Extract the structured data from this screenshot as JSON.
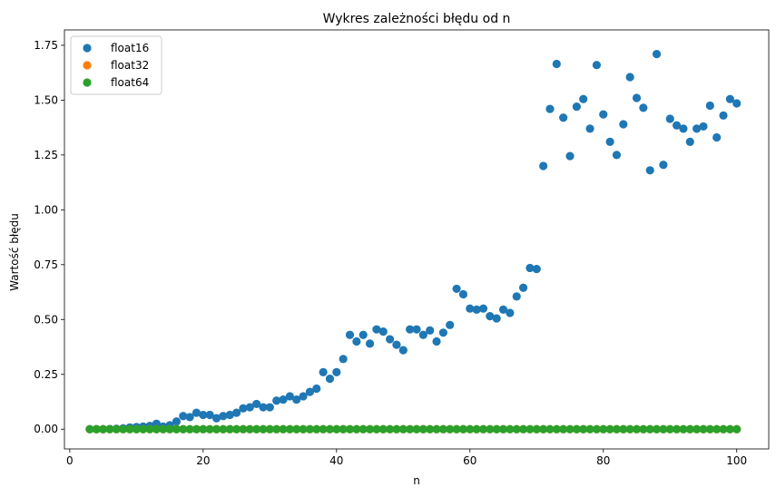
{
  "chart_data": {
    "type": "scatter",
    "title": "Wykres zależności błędu od n",
    "xlabel": "n",
    "ylabel": "Wartość błędu",
    "xlim": [
      -0.8,
      104.8
    ],
    "ylim": [
      -0.09,
      1.82
    ],
    "xticks": [
      0,
      20,
      40,
      60,
      80,
      100
    ],
    "xtick_labels": [
      "0",
      "20",
      "40",
      "60",
      "80",
      "100"
    ],
    "yticks": [
      0.0,
      0.25,
      0.5,
      0.75,
      1.0,
      1.25,
      1.5,
      1.75
    ],
    "ytick_labels": [
      "0.00",
      "0.25",
      "0.50",
      "0.75",
      "1.00",
      "1.25",
      "1.50",
      "1.75"
    ],
    "grid": false,
    "legend_position": "top-left",
    "x": [
      3,
      4,
      5,
      6,
      7,
      8,
      9,
      10,
      11,
      12,
      13,
      14,
      15,
      16,
      17,
      18,
      19,
      20,
      21,
      22,
      23,
      24,
      25,
      26,
      27,
      28,
      29,
      30,
      31,
      32,
      33,
      34,
      35,
      36,
      37,
      38,
      39,
      40,
      41,
      42,
      43,
      44,
      45,
      46,
      47,
      48,
      49,
      50,
      51,
      52,
      53,
      54,
      55,
      56,
      57,
      58,
      59,
      60,
      61,
      62,
      63,
      64,
      65,
      66,
      67,
      68,
      69,
      70,
      71,
      72,
      73,
      74,
      75,
      76,
      77,
      78,
      79,
      80,
      81,
      82,
      83,
      84,
      85,
      86,
      87,
      88,
      89,
      90,
      91,
      92,
      93,
      94,
      95,
      96,
      97,
      98,
      99,
      100
    ],
    "series": [
      {
        "name": "float16",
        "color": "#1f77b4",
        "values": [
          0.0,
          0.0,
          0.0,
          0.001,
          0.002,
          0.004,
          0.008,
          0.01,
          0.012,
          0.015,
          0.025,
          0.012,
          0.018,
          0.035,
          0.06,
          0.055,
          0.075,
          0.065,
          0.065,
          0.05,
          0.06,
          0.065,
          0.075,
          0.095,
          0.1,
          0.115,
          0.1,
          0.1,
          0.13,
          0.135,
          0.15,
          0.135,
          0.15,
          0.17,
          0.185,
          0.26,
          0.23,
          0.26,
          0.32,
          0.43,
          0.4,
          0.43,
          0.39,
          0.455,
          0.445,
          0.41,
          0.385,
          0.36,
          0.455,
          0.455,
          0.43,
          0.45,
          0.4,
          0.44,
          0.475,
          0.64,
          0.615,
          0.55,
          0.545,
          0.55,
          0.515,
          0.505,
          0.545,
          0.53,
          0.605,
          0.645,
          0.735,
          0.73,
          1.2,
          1.46,
          1.665,
          1.42,
          1.245,
          1.47,
          1.505,
          1.37,
          1.66,
          1.435,
          1.31,
          1.25,
          1.39,
          1.605,
          1.51,
          1.465,
          1.18,
          1.71,
          1.205,
          1.415,
          1.385,
          1.37,
          1.31,
          1.37,
          1.38,
          1.475,
          1.33,
          1.43,
          1.505,
          1.485
        ]
      },
      {
        "name": "float32",
        "color": "#ff7f0e",
        "values": [
          0,
          0,
          0,
          0,
          0,
          0,
          0,
          0,
          0,
          0,
          0,
          0,
          0,
          0,
          0,
          0,
          0,
          0,
          0,
          0,
          0,
          0,
          0,
          0,
          0,
          0,
          0,
          0,
          0,
          0,
          0,
          0,
          0,
          0,
          0,
          0,
          0,
          0,
          0,
          0,
          0,
          0,
          0,
          0,
          0,
          0,
          0,
          0,
          0,
          0,
          0,
          0,
          0,
          0,
          0,
          0,
          0,
          0,
          0,
          0,
          0,
          0,
          0,
          0,
          0,
          0,
          0,
          0,
          0,
          0,
          0,
          0,
          0,
          0,
          0,
          0,
          0,
          0,
          0,
          0,
          0,
          0,
          0,
          0,
          0,
          0,
          0,
          0,
          0,
          0,
          0,
          0,
          0,
          0,
          0,
          0,
          0,
          0
        ]
      },
      {
        "name": "float64",
        "color": "#2ca02c",
        "values": [
          0,
          0,
          0,
          0,
          0,
          0,
          0,
          0,
          0,
          0,
          0,
          0,
          0,
          0,
          0,
          0,
          0,
          0,
          0,
          0,
          0,
          0,
          0,
          0,
          0,
          0,
          0,
          0,
          0,
          0,
          0,
          0,
          0,
          0,
          0,
          0,
          0,
          0,
          0,
          0,
          0,
          0,
          0,
          0,
          0,
          0,
          0,
          0,
          0,
          0,
          0,
          0,
          0,
          0,
          0,
          0,
          0,
          0,
          0,
          0,
          0,
          0,
          0,
          0,
          0,
          0,
          0,
          0,
          0,
          0,
          0,
          0,
          0,
          0,
          0,
          0,
          0,
          0,
          0,
          0,
          0,
          0,
          0,
          0,
          0,
          0,
          0,
          0,
          0,
          0,
          0,
          0,
          0,
          0,
          0,
          0,
          0,
          0
        ]
      }
    ]
  }
}
